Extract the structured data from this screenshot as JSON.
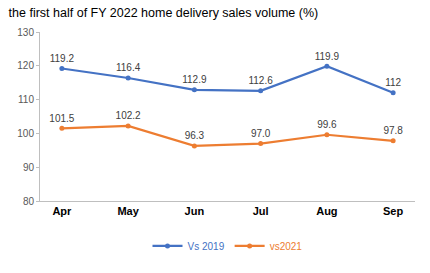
{
  "chart_data": {
    "type": "line",
    "title": "the first half of FY 2022 home delivery sales volume (%)",
    "categories": [
      "Apr",
      "May",
      "Jun",
      "Jul",
      "Aug",
      "Sep"
    ],
    "series": [
      {
        "name": "Vs 2019",
        "color": "#4472c4",
        "values": [
          119.2,
          116.4,
          112.9,
          112.6,
          119.9,
          112
        ]
      },
      {
        "name": "vs2021",
        "color": "#ed7d31",
        "values": [
          101.5,
          102.2,
          96.3,
          97.0,
          99.6,
          97.8
        ],
        "value_labels": [
          "101.5",
          "102.2",
          "96.3",
          "97.0",
          "99.6",
          "97.8"
        ]
      }
    ],
    "ylim": [
      80,
      130
    ],
    "yticks": [
      80,
      90,
      100,
      110,
      120,
      130
    ],
    "grid": false,
    "legend": "bottom",
    "data_labels": true,
    "marker": "circle",
    "line_style": "solid"
  }
}
